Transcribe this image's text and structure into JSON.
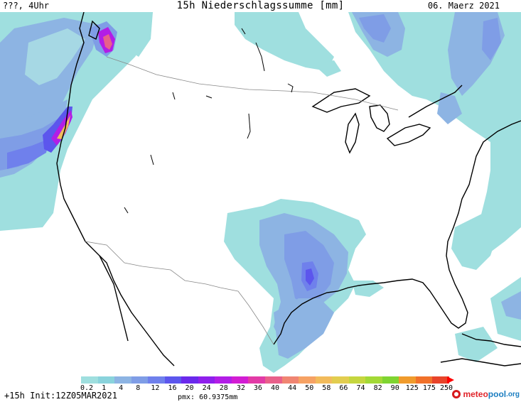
{
  "header": {
    "left": "???, 4Uhr",
    "title": "15h Niederschlagssumme [mm]",
    "date": "06. Maerz 2021"
  },
  "legend": {
    "ticks": [
      "0.2",
      "1",
      "4",
      "8",
      "12",
      "16",
      "20",
      "24",
      "28",
      "32",
      "36",
      "40",
      "44",
      "50",
      "58",
      "66",
      "74",
      "82",
      "90",
      "125",
      "175",
      "250"
    ],
    "colors": [
      "#9fdfdf",
      "#8ad3dc",
      "#8db4e3",
      "#7f9de6",
      "#6f80ec",
      "#5c56ed",
      "#6a29ec",
      "#8f1fec",
      "#b21de6",
      "#d21cd3",
      "#e23aa6",
      "#e8608a",
      "#f08572",
      "#f6a264",
      "#f2bb5b",
      "#e2cd4f",
      "#c5d63f",
      "#a3d936",
      "#7fd431",
      "#f09b2c",
      "#f1712a",
      "#e8442a"
    ]
  },
  "footer": {
    "run": "+15h  Init:12Z05MAR2021",
    "pmx": "pmx: 60.9375mm"
  },
  "logo": {
    "part1": "meteo",
    "part2": "pool",
    "suffix": ".org"
  }
}
